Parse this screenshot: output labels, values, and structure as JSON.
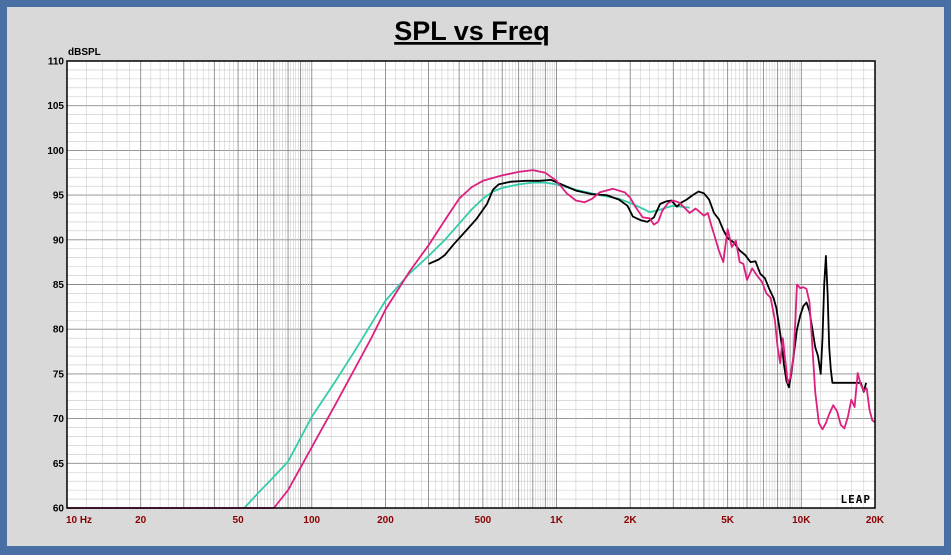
{
  "chart_data": {
    "type": "line",
    "title": "SPL vs Freq",
    "ylabel": "dBSPL",
    "xlabel": "",
    "x_scale": "log",
    "xlim": [
      10,
      20000
    ],
    "ylim": [
      60,
      110
    ],
    "yticks": [
      60,
      65,
      70,
      75,
      80,
      85,
      90,
      95,
      100,
      105,
      110
    ],
    "xticks": [
      {
        "value": 10,
        "label": "10 Hz"
      },
      {
        "value": 20,
        "label": "20"
      },
      {
        "value": 50,
        "label": "50"
      },
      {
        "value": 100,
        "label": "100"
      },
      {
        "value": 200,
        "label": "200"
      },
      {
        "value": 500,
        "label": "500"
      },
      {
        "value": 1000,
        "label": "1K"
      },
      {
        "value": 2000,
        "label": "2K"
      },
      {
        "value": 5000,
        "label": "5K"
      },
      {
        "value": 10000,
        "label": "10K"
      },
      {
        "value": 20000,
        "label": "20K"
      }
    ],
    "grid": true,
    "logo": "LEAP",
    "series": [
      {
        "color": "#33ccaa",
        "points": [
          [
            53,
            60
          ],
          [
            60,
            61.6
          ],
          [
            70,
            63.5
          ],
          [
            80,
            65.2
          ],
          [
            100,
            70.2
          ],
          [
            125,
            74.2
          ],
          [
            150,
            77.6
          ],
          [
            175,
            80.6
          ],
          [
            200,
            83.2
          ],
          [
            250,
            86.2
          ],
          [
            300,
            88.2
          ],
          [
            350,
            90.0
          ],
          [
            400,
            91.8
          ],
          [
            450,
            93.4
          ],
          [
            500,
            94.6
          ],
          [
            550,
            95.4
          ],
          [
            600,
            95.8
          ],
          [
            700,
            96.2
          ],
          [
            800,
            96.4
          ],
          [
            900,
            96.4
          ],
          [
            1000,
            96.2
          ],
          [
            1200,
            95.6
          ],
          [
            1500,
            95.0
          ],
          [
            1800,
            94.6
          ],
          [
            2000,
            94.1
          ],
          [
            2200,
            93.6
          ],
          [
            2400,
            93.1
          ],
          [
            2600,
            93.3
          ],
          [
            2800,
            93.6
          ],
          [
            3000,
            93.8
          ],
          [
            3500,
            93.6
          ]
        ]
      },
      {
        "color": "#000000",
        "points": [
          [
            300,
            87.3
          ],
          [
            330,
            87.8
          ],
          [
            350,
            88.3
          ],
          [
            380,
            89.5
          ],
          [
            420,
            90.8
          ],
          [
            470,
            92.3
          ],
          [
            520,
            94.0
          ],
          [
            550,
            95.6
          ],
          [
            580,
            96.2
          ],
          [
            650,
            96.5
          ],
          [
            750,
            96.6
          ],
          [
            850,
            96.6
          ],
          [
            950,
            96.7
          ],
          [
            1050,
            96.2
          ],
          [
            1200,
            95.5
          ],
          [
            1400,
            95.1
          ],
          [
            1600,
            95.0
          ],
          [
            1800,
            94.5
          ],
          [
            1950,
            93.8
          ],
          [
            2050,
            92.6
          ],
          [
            2200,
            92.2
          ],
          [
            2350,
            92.0
          ],
          [
            2500,
            92.5
          ],
          [
            2650,
            94.0
          ],
          [
            2800,
            94.3
          ],
          [
            2950,
            94.4
          ],
          [
            3100,
            93.7
          ],
          [
            3250,
            94.2
          ],
          [
            3400,
            94.5
          ],
          [
            3600,
            95.0
          ],
          [
            3800,
            95.4
          ],
          [
            4000,
            95.2
          ],
          [
            4200,
            94.5
          ],
          [
            4400,
            93.0
          ],
          [
            4600,
            92.3
          ],
          [
            4800,
            91.1
          ],
          [
            5000,
            90.2
          ],
          [
            5300,
            89.7
          ],
          [
            5600,
            88.8
          ],
          [
            5900,
            88.3
          ],
          [
            6200,
            87.5
          ],
          [
            6500,
            87.6
          ],
          [
            6800,
            86.2
          ],
          [
            7100,
            85.7
          ],
          [
            7400,
            84.5
          ],
          [
            7700,
            83.5
          ],
          [
            7900,
            82.4
          ],
          [
            8100,
            80.5
          ],
          [
            8300,
            78.5
          ],
          [
            8500,
            76.0
          ],
          [
            8700,
            74.2
          ],
          [
            8900,
            73.5
          ],
          [
            9100,
            75.0
          ],
          [
            9300,
            77.0
          ],
          [
            9600,
            80.0
          ],
          [
            9900,
            81.5
          ],
          [
            10200,
            82.6
          ],
          [
            10500,
            83.0
          ],
          [
            10800,
            82.0
          ],
          [
            11100,
            80.0
          ],
          [
            11400,
            78.0
          ],
          [
            11700,
            77.0
          ],
          [
            12000,
            75.0
          ],
          [
            12200,
            79.0
          ],
          [
            12400,
            85.0
          ],
          [
            12600,
            88.2
          ],
          [
            12800,
            84.0
          ],
          [
            13000,
            78.0
          ],
          [
            13200,
            75.5
          ],
          [
            13400,
            74.0
          ],
          [
            16000,
            74.0
          ],
          [
            17500,
            74.0
          ],
          [
            18000,
            73.0
          ],
          [
            18400,
            74.0
          ]
        ]
      },
      {
        "color": "#dd1f7f",
        "points": [
          [
            10,
            60
          ],
          [
            70,
            60
          ],
          [
            80,
            62.0
          ],
          [
            100,
            66.8
          ],
          [
            125,
            71.6
          ],
          [
            150,
            75.6
          ],
          [
            175,
            79.0
          ],
          [
            200,
            82.2
          ],
          [
            250,
            86.4
          ],
          [
            300,
            89.4
          ],
          [
            350,
            92.2
          ],
          [
            400,
            94.6
          ],
          [
            450,
            95.9
          ],
          [
            500,
            96.6
          ],
          [
            600,
            97.2
          ],
          [
            700,
            97.6
          ],
          [
            800,
            97.8
          ],
          [
            900,
            97.5
          ],
          [
            1000,
            96.6
          ],
          [
            1100,
            95.2
          ],
          [
            1200,
            94.4
          ],
          [
            1300,
            94.2
          ],
          [
            1400,
            94.6
          ],
          [
            1500,
            95.3
          ],
          [
            1700,
            95.7
          ],
          [
            1900,
            95.3
          ],
          [
            2000,
            94.7
          ],
          [
            2100,
            93.7
          ],
          [
            2250,
            92.5
          ],
          [
            2400,
            92.4
          ],
          [
            2500,
            91.7
          ],
          [
            2600,
            92.0
          ],
          [
            2700,
            93.2
          ],
          [
            2850,
            94.1
          ],
          [
            3000,
            94.4
          ],
          [
            3150,
            94.2
          ],
          [
            3300,
            93.7
          ],
          [
            3500,
            93.0
          ],
          [
            3700,
            93.5
          ],
          [
            3850,
            93.1
          ],
          [
            4000,
            92.7
          ],
          [
            4150,
            93.0
          ],
          [
            4300,
            91.5
          ],
          [
            4450,
            90.2
          ],
          [
            4600,
            88.8
          ],
          [
            4800,
            87.5
          ],
          [
            5000,
            91.2
          ],
          [
            5200,
            89.2
          ],
          [
            5400,
            89.9
          ],
          [
            5600,
            87.5
          ],
          [
            5800,
            87.3
          ],
          [
            6000,
            85.5
          ],
          [
            6300,
            86.8
          ],
          [
            6600,
            86.0
          ],
          [
            6900,
            85.3
          ],
          [
            7200,
            84.0
          ],
          [
            7500,
            83.5
          ],
          [
            7800,
            81.0
          ],
          [
            8000,
            78.0
          ],
          [
            8200,
            76.2
          ],
          [
            8400,
            79.0
          ],
          [
            8600,
            76.5
          ],
          [
            8800,
            74.0
          ],
          [
            9000,
            74.5
          ],
          [
            9300,
            77.0
          ],
          [
            9600,
            85.0
          ],
          [
            9900,
            84.6
          ],
          [
            10200,
            84.7
          ],
          [
            10500,
            84.5
          ],
          [
            10800,
            83.0
          ],
          [
            11100,
            78.0
          ],
          [
            11400,
            73.0
          ],
          [
            11800,
            69.5
          ],
          [
            12200,
            68.8
          ],
          [
            12600,
            69.5
          ],
          [
            13000,
            70.5
          ],
          [
            13500,
            71.5
          ],
          [
            14000,
            70.8
          ],
          [
            14500,
            69.3
          ],
          [
            15000,
            68.9
          ],
          [
            15500,
            70.2
          ],
          [
            16000,
            72.1
          ],
          [
            16500,
            71.3
          ],
          [
            17000,
            75.1
          ],
          [
            17500,
            73.8
          ],
          [
            18000,
            73.1
          ],
          [
            18500,
            73.4
          ],
          [
            19000,
            71.0
          ],
          [
            19500,
            69.8
          ],
          [
            20000,
            69.6
          ]
        ]
      }
    ]
  }
}
